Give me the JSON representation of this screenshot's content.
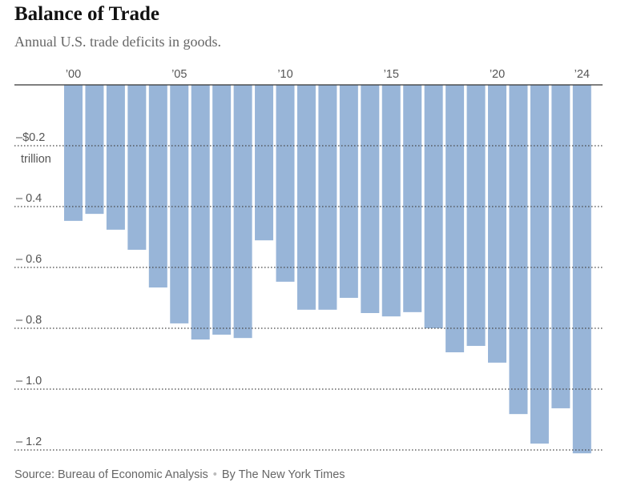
{
  "chart_data": {
    "type": "bar",
    "title": "Balance of Trade",
    "subtitle": "Annual U.S. trade deficits in goods.",
    "categories": [
      "2000",
      "2001",
      "2002",
      "2003",
      "2004",
      "2005",
      "2006",
      "2007",
      "2008",
      "2009",
      "2010",
      "2011",
      "2012",
      "2013",
      "2014",
      "2015",
      "2016",
      "2017",
      "2018",
      "2019",
      "2020",
      "2021",
      "2022",
      "2023",
      "2024"
    ],
    "values": [
      -0.447,
      -0.424,
      -0.476,
      -0.542,
      -0.666,
      -0.784,
      -0.837,
      -0.821,
      -0.832,
      -0.511,
      -0.647,
      -0.739,
      -0.739,
      -0.7,
      -0.75,
      -0.761,
      -0.747,
      -0.8,
      -0.879,
      -0.858,
      -0.913,
      -1.082,
      -1.179,
      -1.063,
      -1.211
    ],
    "xtick_labels": [
      {
        "index": 0,
        "label": "’00"
      },
      {
        "index": 5,
        "label": "’05"
      },
      {
        "index": 10,
        "label": "’10"
      },
      {
        "index": 15,
        "label": "’15"
      },
      {
        "index": 20,
        "label": "’20"
      },
      {
        "index": 24,
        "label": "’24"
      }
    ],
    "yticks": [
      {
        "value": -0.2,
        "label": "–$0.2"
      },
      {
        "value": -0.4,
        "label": "– 0.4"
      },
      {
        "value": -0.6,
        "label": "– 0.6"
      },
      {
        "value": -0.8,
        "label": "– 0.8"
      },
      {
        "value": -1.0,
        "label": "– 1.0"
      },
      {
        "value": -1.2,
        "label": "– 1.2"
      }
    ],
    "yunit_label": "trillion",
    "ylabel": "",
    "xlabel": "",
    "ylim": [
      -1.22,
      0
    ],
    "grid": true,
    "bar_color": "#98b5d8"
  },
  "footer": {
    "source": "Source: Bureau of Economic Analysis",
    "separator": "•",
    "credit": "By The New York Times"
  }
}
